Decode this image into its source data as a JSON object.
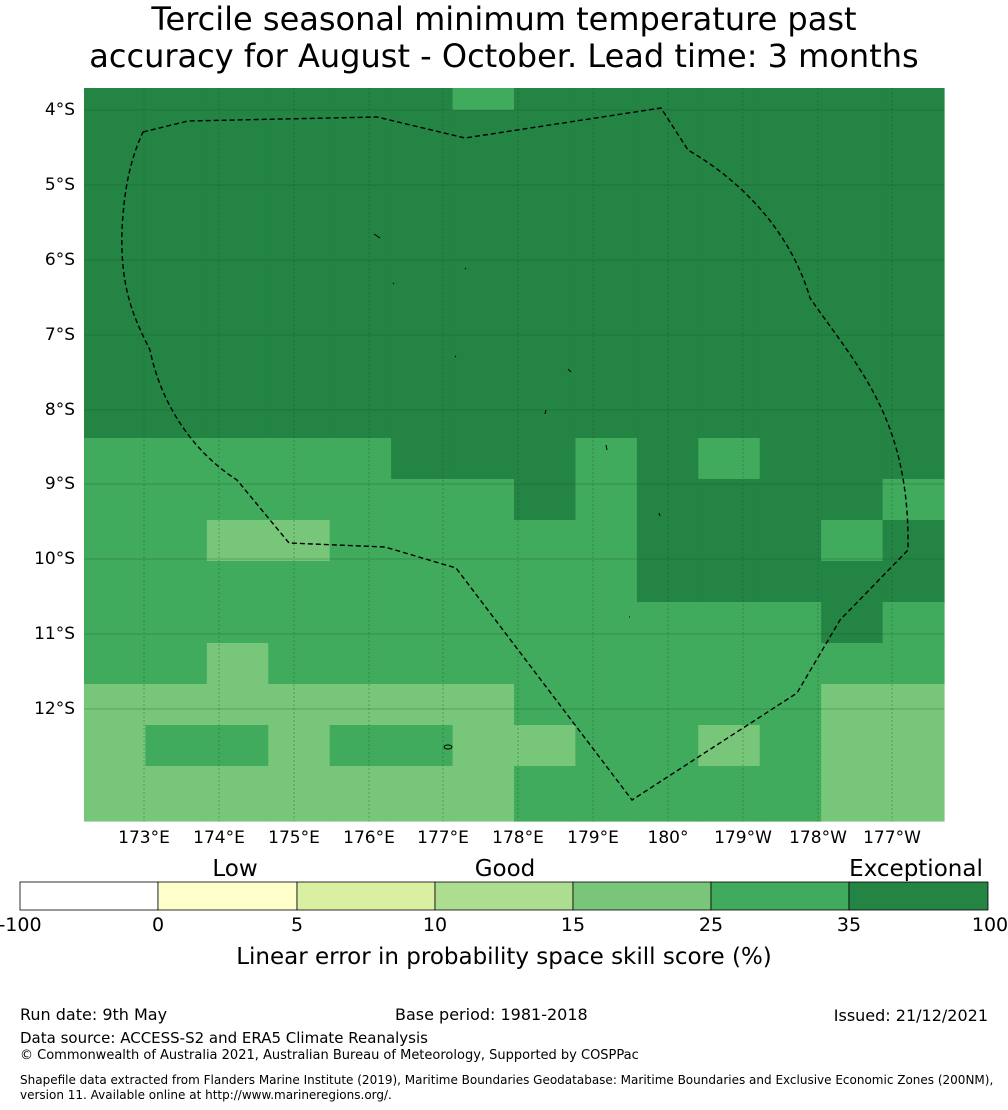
{
  "title": {
    "line1": "Tercile seasonal minimum temperature past",
    "line2": "accuracy for August - October. Lead time: 3 months"
  },
  "map": {
    "lat_labels": [
      "4°S",
      "5°S",
      "6°S",
      "7°S",
      "8°S",
      "9°S",
      "10°S",
      "11°S",
      "12°S"
    ],
    "lon_labels": [
      "173°E",
      "174°E",
      "175°E",
      "176°E",
      "177°E",
      "178°E",
      "179°E",
      "180°",
      "179°W",
      "178°W",
      "177°W"
    ],
    "skill_grid": [
      [
        35,
        35,
        35,
        35,
        35,
        35,
        25,
        35,
        35,
        35,
        35,
        35,
        35,
        35
      ],
      [
        35,
        35,
        35,
        35,
        35,
        35,
        35,
        35,
        35,
        35,
        35,
        35,
        35,
        35
      ],
      [
        35,
        35,
        35,
        35,
        35,
        35,
        35,
        35,
        35,
        35,
        35,
        35,
        35,
        35
      ],
      [
        35,
        35,
        35,
        35,
        35,
        35,
        35,
        35,
        35,
        35,
        35,
        35,
        35,
        35
      ],
      [
        35,
        35,
        35,
        35,
        35,
        35,
        35,
        35,
        35,
        35,
        35,
        35,
        35,
        35
      ],
      [
        35,
        35,
        35,
        35,
        35,
        35,
        35,
        35,
        35,
        35,
        35,
        35,
        35,
        35
      ],
      [
        35,
        35,
        35,
        35,
        35,
        35,
        35,
        35,
        35,
        35,
        35,
        35,
        35,
        35
      ],
      [
        35,
        35,
        35,
        35,
        35,
        35,
        35,
        35,
        35,
        35,
        35,
        35,
        35,
        35
      ],
      [
        35,
        35,
        35,
        35,
        35,
        35,
        35,
        35,
        35,
        35,
        35,
        35,
        35,
        35
      ],
      [
        25,
        25,
        25,
        25,
        25,
        35,
        35,
        35,
        25,
        35,
        25,
        35,
        35,
        35
      ],
      [
        25,
        25,
        25,
        25,
        25,
        25,
        25,
        35,
        25,
        35,
        35,
        35,
        35,
        25
      ],
      [
        25,
        25,
        15,
        15,
        25,
        25,
        25,
        25,
        25,
        35,
        35,
        35,
        25,
        35
      ],
      [
        25,
        25,
        25,
        25,
        25,
        25,
        25,
        25,
        25,
        35,
        35,
        35,
        35,
        35
      ],
      [
        25,
        25,
        25,
        25,
        25,
        25,
        25,
        25,
        25,
        25,
        25,
        25,
        35,
        25
      ],
      [
        25,
        25,
        15,
        25,
        25,
        25,
        25,
        25,
        25,
        25,
        25,
        25,
        25,
        25
      ],
      [
        15,
        15,
        15,
        15,
        15,
        15,
        15,
        25,
        25,
        25,
        25,
        25,
        15,
        15
      ],
      [
        15,
        25,
        25,
        15,
        25,
        25,
        15,
        15,
        25,
        25,
        15,
        25,
        15,
        15
      ],
      [
        15,
        15,
        15,
        15,
        15,
        15,
        15,
        25,
        25,
        25,
        25,
        25,
        15,
        15
      ]
    ]
  },
  "colorbar": {
    "categories": [
      "Low",
      "Good",
      "Exceptional"
    ],
    "ticks": [
      "-100",
      "0",
      "5",
      "10",
      "15",
      "25",
      "35",
      "100"
    ],
    "colors": [
      "#ffffff",
      "#ffffcc",
      "#d9f0a3",
      "#addd8e",
      "#78c679",
      "#41ab5d",
      "#238443"
    ],
    "label": "Linear error in probability space skill score (%)"
  },
  "footer": {
    "run_date": "Run date: 9th May",
    "base_period": "Base period: 1981-2018",
    "issued": "Issued: 21/12/2021",
    "data_source": "Data source: ACCESS-S2 and ERA5 Climate Reanalysis",
    "copyright": "© Commonwealth of Australia 2021, Australian Bureau of Meteorology, Supported by COSPPac",
    "shapefile_line1": "Shapefile data extracted from Flanders Marine Institute (2019), Maritime Boundaries Geodatabase: Maritime Boundaries and Exclusive Economic Zones (200NM),",
    "shapefile_line2": "version 11. Available online at http://www.marineregions.org/."
  }
}
